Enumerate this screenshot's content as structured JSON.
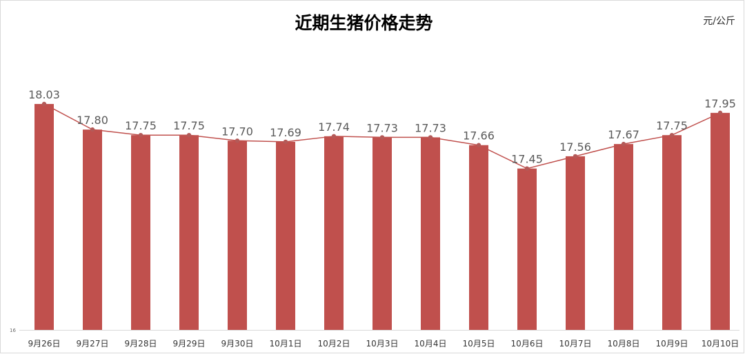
{
  "title": "近期生猪价格走势",
  "unit": "元/公斤",
  "chart_data": {
    "type": "bar",
    "title": "近期生猪价格走势",
    "unit": "元/公斤",
    "categories": [
      "9月26日",
      "9月27日",
      "9月28日",
      "9月29日",
      "9月30日",
      "10月1日",
      "10月2日",
      "10月3日",
      "10月4日",
      "10月5日",
      "10月6日",
      "10月7日",
      "10月8日",
      "10月9日",
      "10月10日"
    ],
    "values": [
      18.03,
      17.8,
      17.75,
      17.75,
      17.7,
      17.69,
      17.74,
      17.73,
      17.73,
      17.66,
      17.45,
      17.56,
      17.67,
      17.75,
      17.95
    ],
    "value_labels": [
      "18.03",
      "17.80",
      "17.75",
      "17.75",
      "17.70",
      "17.69",
      "17.74",
      "17.73",
      "17.73",
      "17.66",
      "17.45",
      "17.56",
      "17.67",
      "17.75",
      "17.95"
    ],
    "overlay": "line",
    "ylim": [
      16,
      18.7
    ],
    "y_min_label": "16",
    "grid": false,
    "colors": {
      "bar": "#c0504d",
      "line": "#c0504d",
      "marker": "#b45a58",
      "label": "#595959"
    }
  }
}
